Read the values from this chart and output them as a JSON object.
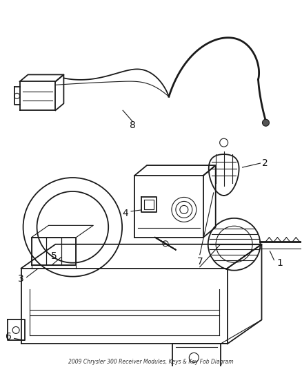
{
  "background_color": "#ffffff",
  "line_color": "#1a1a1a",
  "label_color": "#111111",
  "fig_width": 4.38,
  "fig_height": 5.33,
  "dpi": 100
}
